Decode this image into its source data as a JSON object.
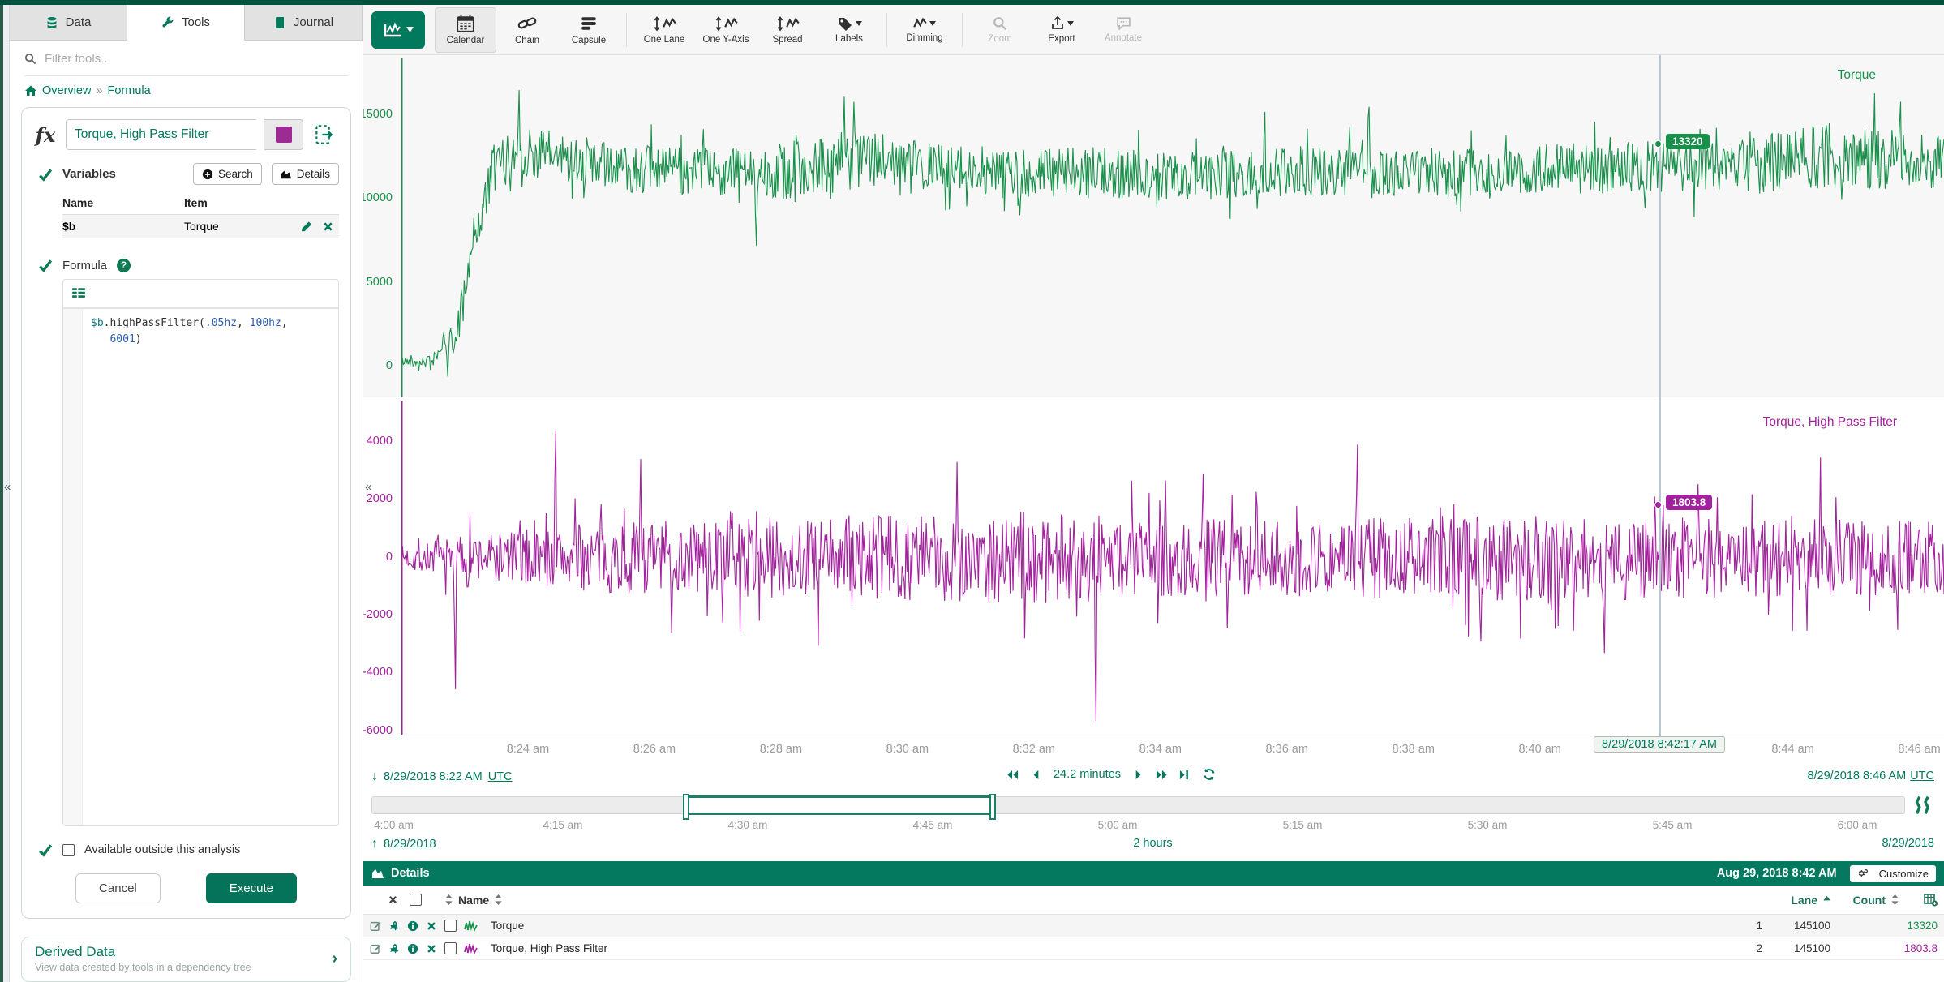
{
  "sidebar": {
    "tabs": [
      {
        "label": "Data"
      },
      {
        "label": "Tools"
      },
      {
        "label": "Journal"
      }
    ],
    "filter_placeholder": "Filter tools...",
    "breadcrumb": {
      "overview": "Overview",
      "sep": "»",
      "current": "Formula"
    },
    "formula_tool": {
      "name_value": "Torque, High Pass Filter",
      "variables_label": "Variables",
      "search_button": "Search",
      "details_button": "Details",
      "table": {
        "col_name": "Name",
        "col_item": "Item",
        "rows": [
          {
            "name": "$b",
            "item": "Torque"
          }
        ]
      },
      "formula_label": "Formula",
      "code_tokens": [
        "$b",
        ".highPassFilter(",
        ".05hz",
        ", ",
        "100hz",
        ",",
        "   6001",
        ")"
      ],
      "checkbox_label": "Available outside this analysis",
      "cancel_label": "Cancel",
      "execute_label": "Execute"
    },
    "derived": {
      "title": "Derived Data",
      "subtitle": "View data created by tools in a dependency tree",
      "chevron": "›"
    }
  },
  "toolbar": {
    "items": [
      {
        "label": "Calendar"
      },
      {
        "label": "Chain"
      },
      {
        "label": "Capsule"
      },
      {
        "label": "One Lane"
      },
      {
        "label": "One Y-Axis"
      },
      {
        "label": "Spread"
      },
      {
        "label": "Labels"
      },
      {
        "label": "Dimming"
      },
      {
        "label": "Zoom"
      },
      {
        "label": "Export"
      },
      {
        "label": "Annotate"
      }
    ]
  },
  "nav": {
    "start_label": "8/29/2018 8:22 AM",
    "start_utc": "UTC",
    "duration": "24.2 minutes",
    "end_label": "8/29/2018 8:46 AM",
    "end_utc": "UTC",
    "cursor_time": "8/29/2018 8:42:17 AM"
  },
  "slider": {
    "ticks": [
      "4:00 am",
      "4:15 am",
      "4:30 am",
      "4:45 am",
      "5:00 am",
      "5:15 am",
      "5:30 am",
      "5:45 am",
      "6:00 am"
    ],
    "date_left": "8/29/2018",
    "duration": "2 hours",
    "date_right": "8/29/2018"
  },
  "details": {
    "title": "Details",
    "timestamp": "Aug 29, 2018 8:42 AM",
    "customize_label": "Customize",
    "col_name": "Name",
    "col_lane": "Lane",
    "col_count": "Count",
    "rows": [
      {
        "name": "Torque",
        "lane": "1",
        "count": "145100",
        "value": "13320",
        "color": "#17914a"
      },
      {
        "name": "Torque, High Pass Filter",
        "lane": "2",
        "count": "145100",
        "value": "1803.8",
        "color": "#a2219c"
      }
    ]
  },
  "chart_data": [
    {
      "type": "line",
      "name": "Torque",
      "color": "#17914a",
      "lane": 1,
      "x_start": "8/29/2018 8:22 AM UTC",
      "x_end": "8/29/2018 8:46 AM UTC",
      "ylim": [
        -1840,
        18580
      ],
      "yticks": [
        {
          "v": 15000,
          "label": "15000"
        },
        {
          "v": 10000,
          "label": "10000"
        },
        {
          "v": 5000,
          "label": "5000"
        },
        {
          "v": 0,
          "label": "0"
        }
      ],
      "xticks": [
        {
          "t": 0.082,
          "label": "8:24 am"
        },
        {
          "t": 0.164,
          "label": "8:26 am"
        },
        {
          "t": 0.246,
          "label": "8:28 am"
        },
        {
          "t": 0.328,
          "label": "8:30 am"
        },
        {
          "t": 0.41,
          "label": "8:32 am"
        },
        {
          "t": 0.492,
          "label": "8:34 am"
        },
        {
          "t": 0.574,
          "label": "8:36 am"
        },
        {
          "t": 0.656,
          "label": "8:38 am"
        },
        {
          "t": 0.738,
          "label": "8:40 am"
        },
        {
          "t": 0.82,
          "label": "8:42 am"
        },
        {
          "t": 0.902,
          "label": "8:44 am"
        },
        {
          "t": 0.984,
          "label": "8:46 am"
        }
      ],
      "cursor": {
        "time": "8/29/2018 8:42:17 AM",
        "value": 13320,
        "t": 0.818
      },
      "points": 1600,
      "seed": 42,
      "baseline": [
        [
          0,
          300
        ],
        [
          0.02,
          300
        ],
        [
          0.028,
          1500
        ],
        [
          0.035,
          1500
        ],
        [
          0.045,
          7000
        ],
        [
          0.06,
          11800
        ],
        [
          0.075,
          12800
        ],
        [
          0.1,
          12600
        ],
        [
          0.13,
          12000
        ],
        [
          0.18,
          11600
        ],
        [
          0.25,
          11700
        ],
        [
          0.3,
          12400
        ],
        [
          0.38,
          11500
        ],
        [
          0.45,
          11600
        ],
        [
          0.52,
          11300
        ],
        [
          0.6,
          11700
        ],
        [
          0.68,
          11500
        ],
        [
          0.75,
          11800
        ],
        [
          0.82,
          11900
        ],
        [
          0.88,
          12000
        ],
        [
          0.93,
          12600
        ],
        [
          0.97,
          12300
        ],
        [
          1,
          12200
        ]
      ],
      "noise_amp": [
        [
          0,
          260
        ],
        [
          0.02,
          350
        ],
        [
          0.03,
          700
        ],
        [
          0.045,
          1600
        ],
        [
          0.07,
          1500
        ],
        [
          0.12,
          1500
        ],
        [
          0.2,
          1400
        ],
        [
          0.28,
          1900
        ],
        [
          0.33,
          1500
        ],
        [
          0.45,
          1500
        ],
        [
          0.55,
          1500
        ],
        [
          0.65,
          1400
        ],
        [
          0.75,
          1500
        ],
        [
          0.85,
          1600
        ],
        [
          0.92,
          2000
        ],
        [
          1,
          1700
        ]
      ],
      "spikes": [
        [
          0.03,
          -600
        ],
        [
          0.076,
          16500
        ],
        [
          0.23,
          7200
        ],
        [
          0.287,
          16100
        ],
        [
          0.293,
          15800
        ],
        [
          0.56,
          15200
        ],
        [
          0.627,
          15500
        ],
        [
          0.818,
          13320
        ],
        [
          0.955,
          16300
        ],
        [
          0.972,
          15800
        ]
      ]
    },
    {
      "type": "line",
      "name": "Torque, High Pass Filter",
      "color": "#a2219c",
      "lane": 2,
      "x_start": "8/29/2018 8:22 AM UTC",
      "x_end": "8/29/2018 8:46 AM UTC",
      "ylim": [
        -6145,
        5530
      ],
      "yticks": [
        {
          "v": 4000,
          "label": "4000"
        },
        {
          "v": 2000,
          "label": "2000"
        },
        {
          "v": 0,
          "label": "0"
        },
        {
          "v": -2000,
          "label": "-2000"
        },
        {
          "v": -4000,
          "label": "-4000"
        },
        {
          "v": -6000,
          "label": "-6000"
        }
      ],
      "cursor": {
        "time": "8/29/2018 8:42:17 AM",
        "value": 1803.8,
        "t": 0.818
      },
      "points": 1600,
      "seed": 7,
      "baseline": [
        [
          0,
          0
        ],
        [
          1,
          0
        ]
      ],
      "noise_amp": [
        [
          0,
          420
        ],
        [
          0.04,
          800
        ],
        [
          0.08,
          1000
        ],
        [
          0.13,
          1200
        ],
        [
          0.18,
          1300
        ],
        [
          0.25,
          1400
        ],
        [
          0.32,
          1500
        ],
        [
          0.4,
          1600
        ],
        [
          0.47,
          1500
        ],
        [
          0.55,
          1300
        ],
        [
          0.63,
          1400
        ],
        [
          0.72,
          1500
        ],
        [
          0.8,
          1450
        ],
        [
          0.88,
          1350
        ],
        [
          1,
          1300
        ]
      ],
      "spikes": [
        [
          0.035,
          -4550
        ],
        [
          0.1,
          4350
        ],
        [
          0.155,
          3400
        ],
        [
          0.175,
          -2600
        ],
        [
          0.27,
          -3050
        ],
        [
          0.36,
          3300
        ],
        [
          0.45,
          -5650
        ],
        [
          0.52,
          2900
        ],
        [
          0.62,
          3900
        ],
        [
          0.7,
          -2900
        ],
        [
          0.78,
          -3300
        ],
        [
          0.818,
          1803.8
        ],
        [
          0.92,
          3450
        ],
        [
          0.97,
          -2500
        ]
      ]
    }
  ],
  "lane_labels": {
    "lane1": "Torque",
    "lane2": "Torque, High Pass Filter"
  },
  "tooltips": {
    "lane1_value": "13320",
    "lane2_value": "1803.8"
  }
}
